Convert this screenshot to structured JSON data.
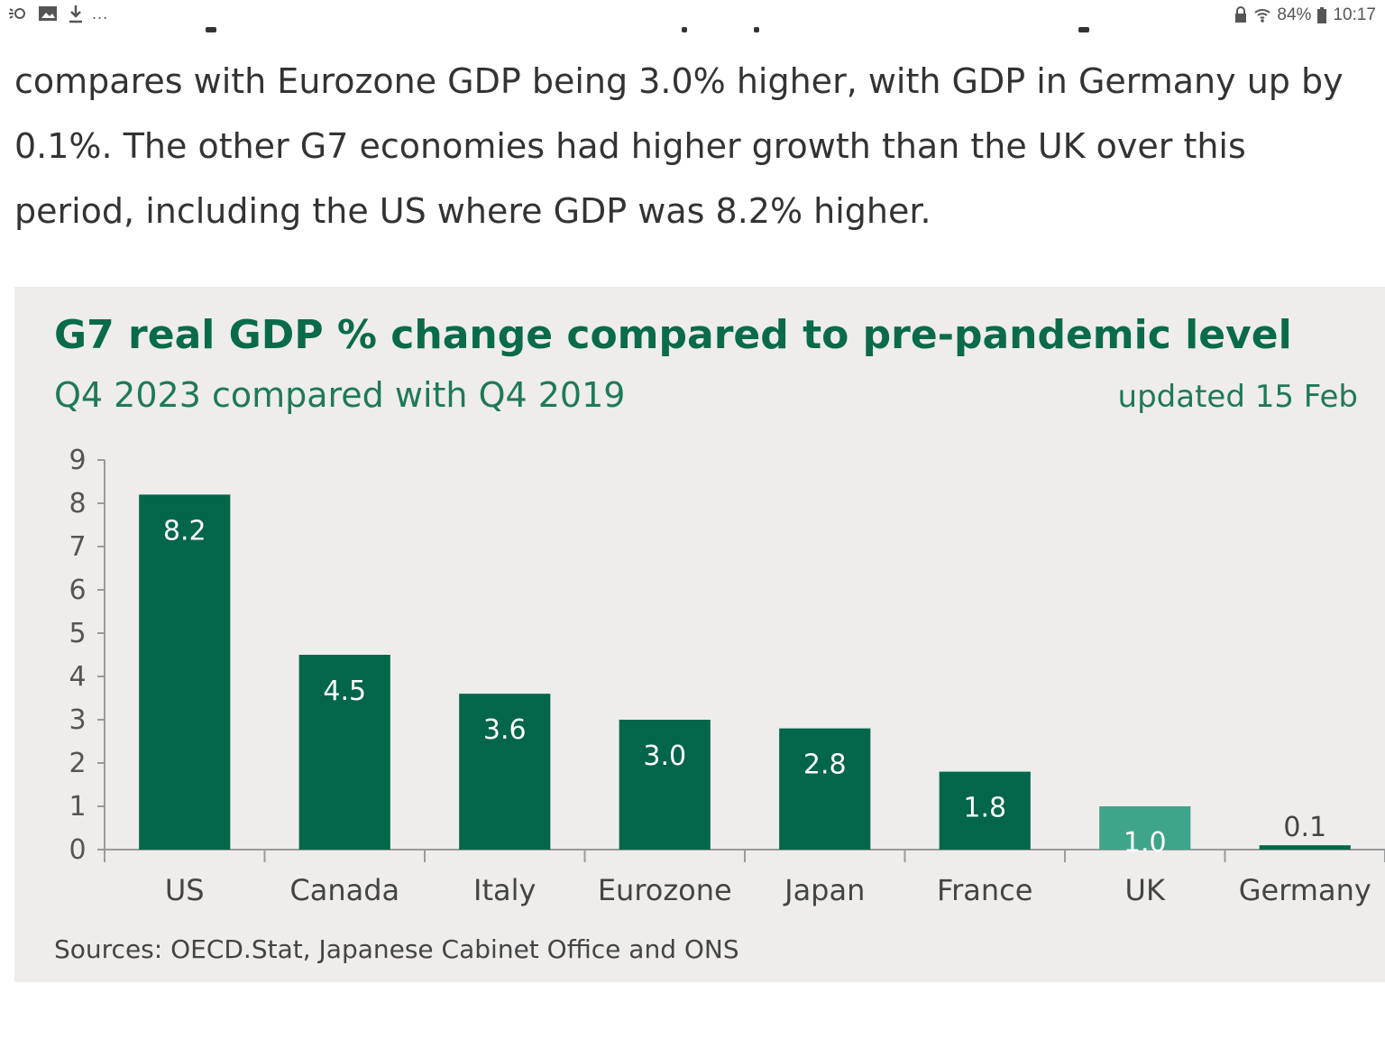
{
  "status_bar": {
    "left_icons": [
      "smart-stay-icon",
      "gallery-icon",
      "download-icon"
    ],
    "overflow": "...",
    "battery": "84%",
    "time": "10:17"
  },
  "article": {
    "paragraph": "compares with Eurozone GDP being 3.0% higher, with GDP in Germany up by 0.1%. The other G7 economies had higher growth than the UK over this period, including the US where GDP was 8.2% higher."
  },
  "chart": {
    "title": "G7 real GDP % change compared to pre-pandemic level",
    "subtitle": "Q4 2023 compared with Q4 2019",
    "updated": "updated 15 Feb",
    "source": "Sources: OECD.Stat, Japanese Cabinet Office and ONS",
    "colors": {
      "primary": "#02664a",
      "highlight": "#3fa58a",
      "background": "#eeedeb"
    }
  },
  "chart_data": {
    "type": "bar",
    "title": "G7 real GDP % change compared to pre-pandemic level",
    "subtitle": "Q4 2023 compared with Q4 2019",
    "categories": [
      "US",
      "Canada",
      "Italy",
      "Eurozone",
      "Japan",
      "France",
      "UK",
      "Germany"
    ],
    "values": [
      8.2,
      4.5,
      3.6,
      3.0,
      2.8,
      1.8,
      1.0,
      0.1
    ],
    "value_labels": [
      "8.2",
      "4.5",
      "3.6",
      "3.0",
      "2.8",
      "1.8",
      "1.0",
      "0.1"
    ],
    "highlight_category": "UK",
    "y_ticks": [
      "0",
      "1",
      "2",
      "3",
      "4",
      "5",
      "6",
      "7",
      "8",
      "9"
    ],
    "ylim": [
      0,
      9
    ],
    "grid": false,
    "legend": "none"
  }
}
